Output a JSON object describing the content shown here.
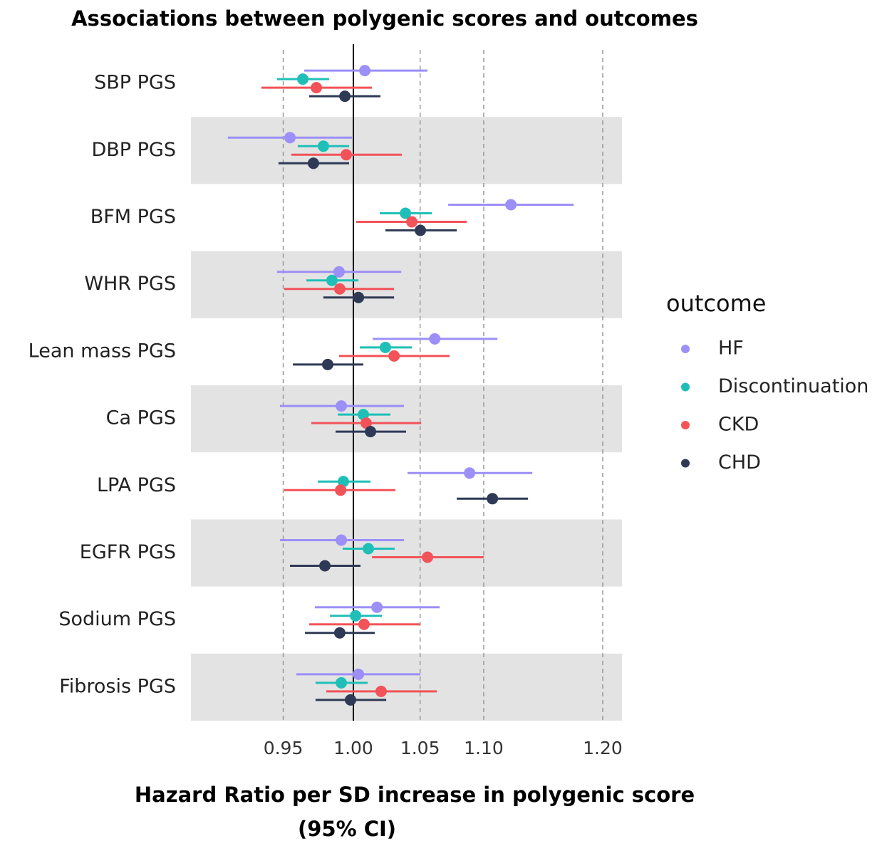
{
  "chart_data": {
    "type": "forest",
    "title": "Associations between polygenic scores and outcomes",
    "x_label": [
      "Hazard Ratio per SD increase in polygenic score",
      "(95% CI)"
    ],
    "legend_title": "outcome",
    "legend_position": "right",
    "log_x": true,
    "grid": true,
    "reference_line": 1,
    "xlim": [
      0.888,
      1.217
    ],
    "xticks": [
      0.95,
      {
        "value": 1,
        "label": "1.00"
      },
      1.05,
      {
        "value": 1.1,
        "label": "1.10"
      },
      {
        "value": 1.2,
        "label": "1.20"
      }
    ],
    "categories": [
      "SBP PGS",
      "DBP PGS",
      "BFM PGS",
      "WHR PGS",
      "Lean mass PGS",
      "Ca PGS",
      "LPA PGS",
      "EGFR PGS",
      "Sodium PGS",
      "Fibrosis PGS"
    ],
    "series": [
      {
        "name": "HF",
        "color": "#9c8ff7",
        "values": [
          1.0084,
          0.9547,
          1.1221,
          0.9896,
          1.0613,
          0.9912,
          1.0887,
          0.9912,
          1.0174,
          1.0037
        ],
        "lower": [
          0.9647,
          0.9123,
          1.0718,
          0.9457,
          1.0142,
          0.9477,
          1.0404,
          0.9477,
          0.9722,
          0.9591
        ],
        "upper": [
          1.0557,
          0.999,
          1.1748,
          1.0356,
          1.1111,
          1.0377,
          1.1398,
          1.0377,
          1.0651,
          1.0502
        ]
      },
      {
        "name": "Discontinuation",
        "color": "#1fbfb8",
        "values": [
          0.9637,
          0.9783,
          1.0388,
          0.9845,
          1.0237,
          1.0073,
          0.9927,
          1.011,
          1.0016,
          0.9912
        ],
        "lower": [
          0.9457,
          0.9601,
          1.0195,
          0.9662,
          1.0047,
          0.9886,
          0.9743,
          0.9922,
          0.983,
          0.9727
        ],
        "upper": [
          0.9824,
          0.9969,
          1.0591,
          1.0037,
          1.0437,
          1.0275,
          1.0126,
          1.0307,
          1.0211,
          1.0105
        ]
      },
      {
        "name": "CKD",
        "color": "#f25358",
        "values": [
          0.9733,
          0.9948,
          1.0437,
          0.9901,
          1.0302,
          1.0094,
          0.9907,
          1.0557,
          1.0078,
          1.0205
        ],
        "lower": [
          0.9349,
          0.9556,
          1.0021,
          0.9507,
          0.9896,
          0.9697,
          0.9507,
          1.0137,
          0.9682,
          0.9804
        ],
        "upper": [
          1.0137,
          1.0361,
          1.0864,
          1.0302,
          1.0729,
          1.0508,
          1.0312,
          1.1,
          1.0497,
          1.0629
        ]
      },
      {
        "name": "CHD",
        "color": "#2e3a55",
        "values": [
          0.9938,
          0.9712,
          1.0502,
          1.0037,
          0.9814,
          1.0126,
          1.107,
          0.9794,
          0.9901,
          0.9979
        ],
        "lower": [
          0.9682,
          0.9467,
          1.0237,
          0.9783,
          0.9567,
          0.9871,
          1.0785,
          0.9547,
          0.9652,
          0.9727
        ],
        "upper": [
          1.02,
          0.9969,
          1.0785,
          1.0302,
          1.0073,
          1.0393,
          1.1362,
          1.0052,
          1.0158,
          1.0243
        ]
      }
    ]
  }
}
